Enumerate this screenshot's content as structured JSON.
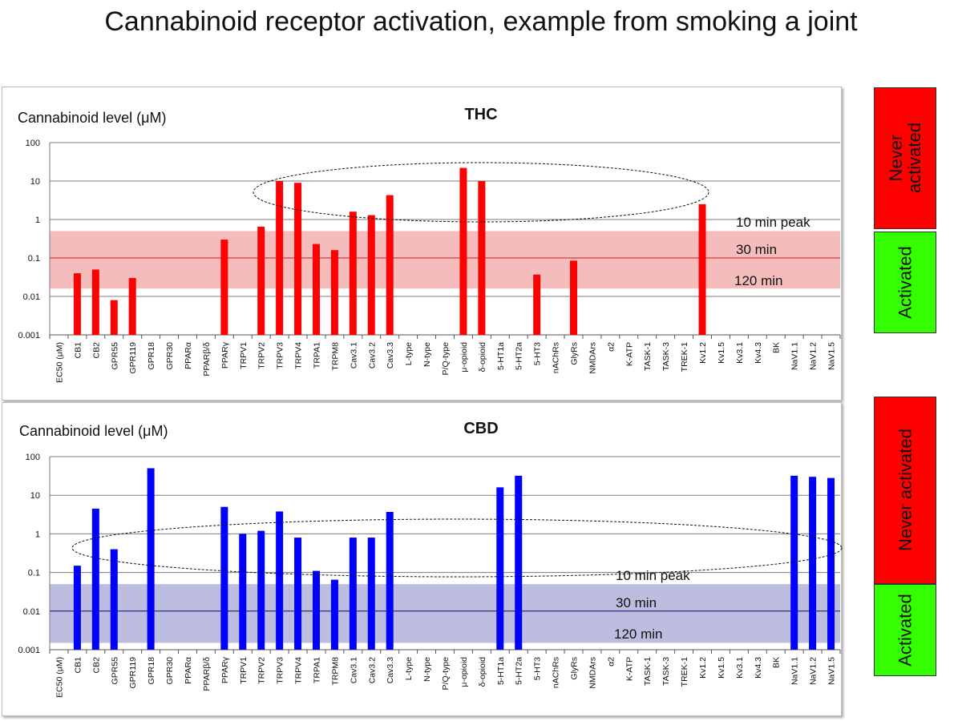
{
  "title": "Cannabinoid receptor activation, example from smoking a joint",
  "colors": {
    "thc": "#ff0000",
    "cbd": "#0000ff",
    "thc_band": "#f5bcbc",
    "cbd_band": "#bdbde0",
    "never": "#ff0000",
    "activated": "#33ff00"
  },
  "side_labels": {
    "thc_never": "Never activated",
    "thc_activated": "Activated",
    "cbd_never": "Never activated",
    "cbd_activated": "Activated"
  },
  "chart_data": [
    {
      "type": "bar",
      "title": "THC",
      "ylabel": "Cannabinoid level (μM)",
      "yscale": "log",
      "ylim": [
        0.001,
        100
      ],
      "yticks": [
        "0.001",
        "0.01",
        "0.1",
        "1",
        "10",
        "100"
      ],
      "grid": true,
      "categories": [
        "EC50 (μM)",
        "CB1",
        "CB2",
        "GPR55",
        "GPR119",
        "GPR18",
        "GPR30",
        "PPARα",
        "PPARβ/δ",
        "PPARγ",
        "TRPV1",
        "TRPV2",
        "TRPV3",
        "TRPV4",
        "TRPA1",
        "TRPM8",
        "Cav3.1",
        "Cav3.2",
        "Cav3.3",
        "L-type",
        "N-type",
        "P/Q-type",
        "μ-opioid",
        "δ-opioid",
        "5-HT1a",
        "5-HT2a",
        "5-HT3",
        "nAChRs",
        "GlyRs",
        "NMDArs",
        "α2",
        "K-ATP",
        "TASK-1",
        "TASK-3",
        "TREK-1",
        "Kv1.2",
        "Kv1.5",
        "Kv3.1",
        "Kv4.3",
        "BK",
        "NaV1.1",
        "NaV1.2",
        "NaV1.5"
      ],
      "values": [
        null,
        0.04,
        0.05,
        0.008,
        0.03,
        null,
        null,
        null,
        null,
        0.3,
        null,
        0.65,
        10,
        9,
        0.23,
        0.16,
        1.6,
        1.3,
        4.3,
        null,
        null,
        null,
        22,
        10,
        null,
        null,
        0.037,
        null,
        0.085,
        null,
        null,
        null,
        null,
        null,
        null,
        2.5,
        null,
        null,
        null,
        null,
        null,
        null,
        null
      ],
      "band": [
        0.016,
        0.5
      ],
      "reference_line": 0.1,
      "annotations": [
        "10 min peak",
        "30 min",
        "120 min"
      ]
    },
    {
      "type": "bar",
      "title": "CBD",
      "ylabel": "Cannabinoid level (μM)",
      "yscale": "log",
      "ylim": [
        0.001,
        100
      ],
      "yticks": [
        "0.001",
        "0.01",
        "0.1",
        "1",
        "10",
        "100"
      ],
      "grid": true,
      "categories": [
        "EC50 (μM)",
        "CB1",
        "CB2",
        "GPR55",
        "GPR119",
        "GPR18",
        "GPR30",
        "PPARα",
        "PPARβ/δ",
        "PPARγ",
        "TRPV1",
        "TRPV2",
        "TRPV3",
        "TRPV4",
        "TRPA1",
        "TRPM8",
        "Cav3.1",
        "Cav3.2",
        "Cav3.3",
        "L-type",
        "N-type",
        "P/Q-type",
        "μ-opioid",
        "δ-opioid",
        "5-HT1a",
        "5-HT2a",
        "5-HT3",
        "nAChRs",
        "GlyRs",
        "NMDArs",
        "α2",
        "K-ATP",
        "TASK-1",
        "TASK-3",
        "TREK-1",
        "Kv1.2",
        "Kv1.5",
        "Kv3.1",
        "Kv4.3",
        "BK",
        "NaV1.1",
        "NaV1.2",
        "NaV1.5"
      ],
      "values": [
        null,
        0.15,
        4.5,
        0.4,
        null,
        50,
        null,
        null,
        null,
        5,
        1,
        1.2,
        3.8,
        0.8,
        0.11,
        0.065,
        0.8,
        0.8,
        3.7,
        null,
        null,
        null,
        null,
        null,
        16,
        32,
        null,
        null,
        null,
        null,
        null,
        null,
        null,
        null,
        null,
        null,
        null,
        null,
        null,
        null,
        32,
        30,
        28
      ],
      "band": [
        0.0015,
        0.05
      ],
      "reference_line": 0.01,
      "annotations": [
        "10 min peak",
        "30 min",
        "120 min"
      ]
    }
  ]
}
